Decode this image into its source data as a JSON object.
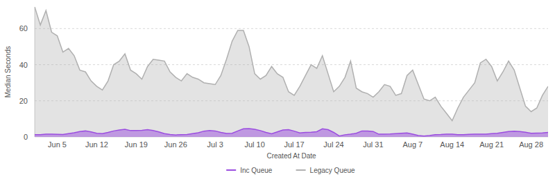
{
  "chart_data": {
    "type": "area",
    "x_label": "Created At Date",
    "y_label": "Median Seconds",
    "categories": [
      null,
      null,
      null,
      null,
      "Jun 5",
      null,
      null,
      null,
      null,
      null,
      null,
      "Jun 12",
      null,
      null,
      null,
      null,
      null,
      null,
      "Jun 19",
      null,
      null,
      null,
      null,
      null,
      null,
      "Jun 26",
      null,
      null,
      null,
      null,
      null,
      null,
      "Jul 3",
      null,
      null,
      null,
      null,
      null,
      null,
      "Jul 10",
      null,
      null,
      null,
      null,
      null,
      null,
      "Jul 17",
      null,
      null,
      null,
      null,
      null,
      null,
      "Jul 24",
      null,
      null,
      null,
      null,
      null,
      null,
      "Jul 31",
      null,
      null,
      null,
      null,
      null,
      null,
      "Aug 7",
      null,
      null,
      null,
      null,
      null,
      null,
      "Aug 14",
      null,
      null,
      null,
      null,
      null,
      null,
      "Aug 21",
      null,
      null,
      null,
      null,
      null,
      null,
      "Aug 28",
      null,
      null,
      null
    ],
    "series": [
      {
        "name": "Inc Queue",
        "color": "#9b4de0",
        "values": [
          1.2,
          1.2,
          1.5,
          1.5,
          1.4,
          1.3,
          1.8,
          2.3,
          3,
          3.3,
          2.8,
          2,
          1.8,
          2.5,
          3.3,
          3.8,
          4.2,
          3.5,
          3.5,
          3.6,
          4,
          3.5,
          2.8,
          1.8,
          1.3,
          1.1,
          1.2,
          1.3,
          1.8,
          2.3,
          3.2,
          3.5,
          3.3,
          2.5,
          1.9,
          2,
          3.3,
          4.5,
          4.6,
          4.2,
          3.5,
          2.5,
          1.7,
          2.8,
          3.8,
          4,
          3.2,
          2.2,
          2.5,
          2.6,
          2.9,
          4.5,
          4,
          2.5,
          0.5,
          1.2,
          1.5,
          2,
          3.3,
          3.3,
          3,
          1.5,
          1.5,
          1.6,
          1.8,
          2,
          2.2,
          1.5,
          0.8,
          0.5,
          0.8,
          1.2,
          1.3,
          1.5,
          1.5,
          1.2,
          1.2,
          1.4,
          1.5,
          1.5,
          1.5,
          1.8,
          2,
          2.5,
          3,
          3.2,
          3,
          2.6,
          2,
          2.1,
          2.2,
          2.5
        ]
      },
      {
        "name": "Legacy Queue",
        "color": "#b0b0b0",
        "values": [
          72,
          62,
          70,
          58,
          56,
          47,
          49,
          45,
          37,
          36,
          31,
          28,
          26,
          31,
          40,
          42,
          46,
          37,
          35,
          32,
          39,
          43,
          42.5,
          42,
          36,
          33,
          31,
          35,
          33,
          32,
          30,
          29.5,
          29,
          34,
          43,
          53,
          59,
          59,
          50,
          35,
          32,
          34,
          39,
          35,
          33,
          25,
          23,
          28,
          34,
          40,
          38,
          45,
          35,
          25,
          28,
          33,
          42,
          27,
          25,
          24,
          22,
          25,
          29,
          28,
          23,
          24,
          34,
          37,
          29,
          21,
          20,
          22,
          17,
          13,
          9,
          16,
          22,
          26,
          30,
          41,
          43,
          39,
          31,
          36,
          42,
          37,
          27,
          17,
          14,
          16,
          23,
          28
        ]
      }
    ],
    "ylim": [
      0,
      72
    ],
    "yticks": [
      0,
      20,
      40,
      60
    ],
    "grid": true,
    "legend": "bottom"
  }
}
